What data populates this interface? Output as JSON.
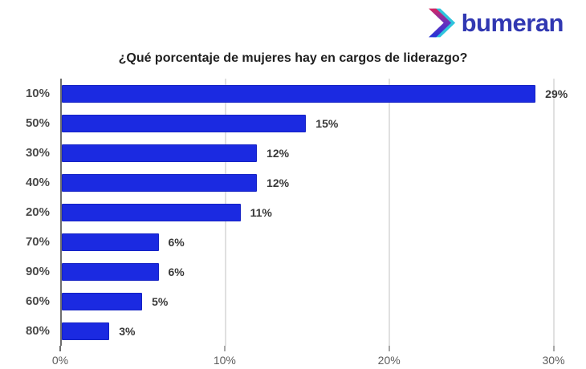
{
  "logo": {
    "wordmark": "bumeran",
    "wordmark_color": "#3138b2",
    "chevron_colors": {
      "back": "#2fc4dd",
      "front_top": "#d8265f",
      "front_mid": "#6a2fbc",
      "front_bottom": "#2433d6"
    }
  },
  "chart_data": {
    "type": "bar",
    "orientation": "horizontal",
    "title": "¿Qué porcentaje de mujeres hay en cargos de liderazgo?",
    "categories": [
      "10%",
      "50%",
      "30%",
      "40%",
      "20%",
      "70%",
      "90%",
      "60%",
      "80%"
    ],
    "values": [
      29,
      15,
      12,
      12,
      11,
      6,
      6,
      5,
      3
    ],
    "value_labels": [
      "29%",
      "15%",
      "12%",
      "12%",
      "11%",
      "6%",
      "6%",
      "5%",
      "3%"
    ],
    "x_ticks": [
      {
        "value": 0,
        "label": "0%"
      },
      {
        "value": 10,
        "label": "10%"
      },
      {
        "value": 20,
        "label": "20%"
      },
      {
        "value": 30,
        "label": "30%"
      }
    ],
    "xlim": [
      0,
      31
    ],
    "bar_color": "#1b2ae1",
    "bar_border_color": "#1522c4",
    "gridline_color": "#e0e0e0",
    "axis_color": "#6e6e6e",
    "tick_color": "#a8a8a8",
    "grid": "vertical",
    "legend": "none"
  }
}
